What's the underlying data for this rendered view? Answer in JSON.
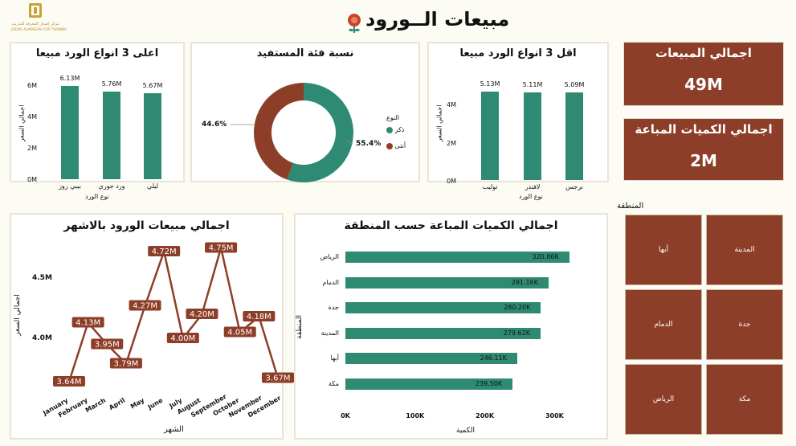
{
  "header": {
    "title": "مبيعات الــورود",
    "logo_line1": "مركز إصدار المعرفة للتدريب",
    "logo_line2": "ERDAR ALMAREFAH FOR TRAINING"
  },
  "kpis": {
    "total_sales_label": "اجمالي المبيعات",
    "total_sales_value": "49M",
    "total_qty_label": "اجمالي الكميات المباعة",
    "total_qty_value": "2M"
  },
  "top3": {
    "title": "اعلى 3 انواع الورد مبيعا",
    "ylabel": "اجمالي السعر",
    "xlabel": "نوع الورد",
    "yticks": [
      "6M",
      "4M",
      "2M",
      "0M"
    ],
    "items": [
      {
        "name": "بيبي روز",
        "value": 6.13,
        "label": "6.13M"
      },
      {
        "name": "ورد جوري",
        "value": 5.76,
        "label": "5.76M"
      },
      {
        "name": "ليلي",
        "value": 5.67,
        "label": "5.67M"
      }
    ]
  },
  "donut": {
    "title": "نسبة فئة المستفيد",
    "legend_title": "النوع",
    "male": {
      "label": "ذكر",
      "pct": 55.4,
      "text": "55.4%"
    },
    "female": {
      "label": "أنثى",
      "pct": 44.6,
      "text": "44.6%"
    }
  },
  "bottom3": {
    "title": "اقل 3 انواع الورد مبيعا",
    "ylabel": "اجمالي السعر",
    "xlabel": "نوع الورد",
    "yticks": [
      "4M",
      "2M",
      "0M"
    ],
    "items": [
      {
        "name": "توليب",
        "value": 5.13,
        "label": "5.13M"
      },
      {
        "name": "لافندر",
        "value": 5.11,
        "label": "5.11M"
      },
      {
        "name": "نرجس",
        "value": 5.09,
        "label": "5.09M"
      }
    ]
  },
  "monthly": {
    "title": "اجمالي مبيعات الورود بالاشهر",
    "ylabel": "اجمالي السعر",
    "xlabel": "الشهر",
    "yticks": [
      "4.5M",
      "4.0M"
    ],
    "months": [
      "January",
      "February",
      "March",
      "April",
      "May",
      "June",
      "July",
      "August",
      "September",
      "October",
      "November",
      "December"
    ],
    "values": [
      3.64,
      4.13,
      3.95,
      3.79,
      4.27,
      4.72,
      4.0,
      4.2,
      4.75,
      4.05,
      4.18,
      3.67
    ],
    "labels": [
      "3.64M",
      "4.13M",
      "3.95M",
      "3.79M",
      "4.27M",
      "4.72M",
      "4.00M",
      "4.20M",
      "4.75M",
      "4.05M",
      "4.18M",
      "3.67M"
    ]
  },
  "regions": {
    "title": "اجمالي الكميات المباعة حسب المنطقة",
    "ylabel": "المنطقة",
    "xlabel": "الكمية",
    "xticks": [
      "0K",
      "100K",
      "200K",
      "300K"
    ],
    "items": [
      {
        "name": "الرياض",
        "value": 320.86,
        "label": "320.86K"
      },
      {
        "name": "الدمام",
        "value": 291.16,
        "label": "291.16K"
      },
      {
        "name": "جدة",
        "value": 280.2,
        "label": "280.20K"
      },
      {
        "name": "المدينة",
        "value": 279.62,
        "label": "279.62K"
      },
      {
        "name": "أبها",
        "value": 246.11,
        "label": "246.11K"
      },
      {
        "name": "مكة",
        "value": 239.5,
        "label": "239.50K"
      }
    ]
  },
  "slicer": {
    "title": "المنطقة",
    "tiles": [
      "المدينة",
      "أبها",
      "جدة",
      "الدمام",
      "مكة",
      "الرياض"
    ]
  },
  "colors": {
    "teal": "#2f8a73",
    "brown": "#8d3e28"
  }
}
